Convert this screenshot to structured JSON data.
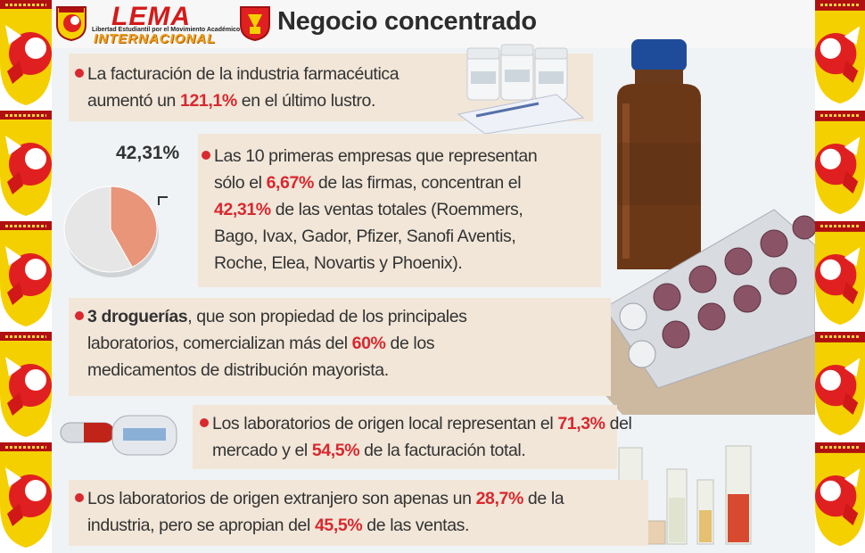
{
  "header": {
    "logo_name": "LEMA",
    "logo_subtitle": "Libertad Estudiantil por el Movimiento Académico",
    "logo_tagline": "INTERNACIONAL",
    "title": "Negocio concentrado"
  },
  "facts": {
    "f1": {
      "line1": "La facturación de la industria farmacéutica",
      "line2_pre": "aumentó un ",
      "line2_hl": "121,1%",
      "line2_post": " en el último lustro."
    },
    "f2": {
      "pie_label": "42,31%",
      "line1": "Las 10 primeras empresas que representan",
      "line2_pre": "sólo el ",
      "line2_hl": "6,67%",
      "line2_post": " de las firmas, concentran el",
      "line3_hl": "42,31%",
      "line3_post": " de las ventas totales (Roemmers,",
      "line4": "Bago, Ivax, Gador, Pfizer, Sanofi Aventis,",
      "line5": "Roche, Elea, Novartis y Phoenix)."
    },
    "f3": {
      "line1_bold": "3 droguerías",
      "line1_post": ", que son propiedad de los principales",
      "line2_pre": "laboratorios, comercializan más del ",
      "line2_hl": "60%",
      "line2_post": " de los",
      "line3": "medicamentos de distribución mayorista."
    },
    "f4": {
      "line1_pre": "Los laboratorios de origen local representan el ",
      "line1_hl": "71,3%",
      "line1_post": " del",
      "line2_pre": "mercado y el ",
      "line2_hl": "54,5%",
      "line2_post": " de la facturación total."
    },
    "f5": {
      "line1_pre": "Los laboratorios de origen extranjero son apenas un ",
      "line1_hl": "28,7%",
      "line1_post": " de la",
      "line2_pre": "industria, pero se apropian del ",
      "line2_hl": "45,5%",
      "line2_post": " de las ventas."
    }
  },
  "chart_data": {
    "type": "pie",
    "slices": [
      {
        "value": 42.31,
        "color": "#e8957a"
      },
      {
        "value": 57.69,
        "color": "#e6e6e6"
      }
    ]
  },
  "colors": {
    "accent": "#d9282f",
    "box": "#f1e6d8",
    "panel": "#f0f3f5"
  }
}
